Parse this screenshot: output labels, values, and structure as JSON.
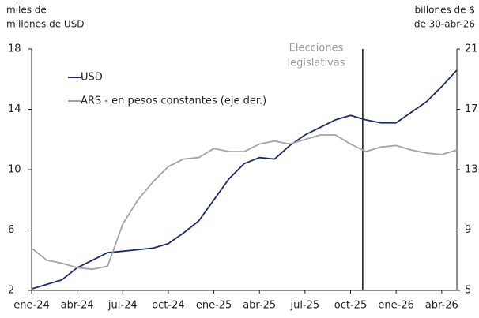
{
  "chart_data": {
    "type": "line",
    "y_label": [
      "miles de",
      "millones de USD"
    ],
    "y2_label": [
      "billones de $",
      "de 30-abr-26"
    ],
    "categories": [
      "ene-24",
      null,
      null,
      "abr-24",
      null,
      null,
      "jul-24",
      null,
      null,
      "oct-24",
      null,
      null,
      "ene-25",
      null,
      null,
      "abr-25",
      null,
      null,
      "jul-25",
      null,
      null,
      "oct-25",
      null,
      null,
      "ene-26",
      null,
      null,
      "abr-26",
      null
    ],
    "series": [
      {
        "name": "USD",
        "color": "#1c2a6b",
        "values": [
          2.1,
          2.4,
          2.7,
          3.5,
          4.0,
          4.5,
          4.6,
          4.7,
          4.8,
          5.1,
          5.8,
          6.6,
          8.0,
          9.4,
          10.4,
          10.8,
          10.7,
          11.6,
          12.3,
          12.8,
          13.3,
          13.6,
          13.3,
          13.1,
          13.1,
          13.8,
          14.5,
          15.5,
          16.6
        ]
      },
      {
        "name": "ARS - en pesos constantes (eje der.)",
        "color": "#a3a3a3",
        "axis": "y2",
        "values": [
          7.8,
          7.0,
          6.8,
          6.5,
          6.4,
          6.6,
          9.4,
          11.0,
          12.2,
          13.2,
          13.7,
          13.8,
          14.4,
          14.2,
          14.2,
          14.7,
          14.9,
          14.7,
          15.0,
          15.3,
          15.3,
          14.7,
          14.2,
          14.5,
          14.6,
          14.3,
          14.1,
          14.0,
          14.3
        ]
      }
    ],
    "ylim": [
      2,
      18
    ],
    "yticks": [
      2,
      6,
      10,
      14,
      18
    ],
    "y2lim": [
      5,
      21
    ],
    "y2ticks": [
      5,
      9,
      13,
      17,
      21
    ],
    "annotation": [
      "Elecciones",
      "legislativas"
    ],
    "legend": "upper left"
  }
}
